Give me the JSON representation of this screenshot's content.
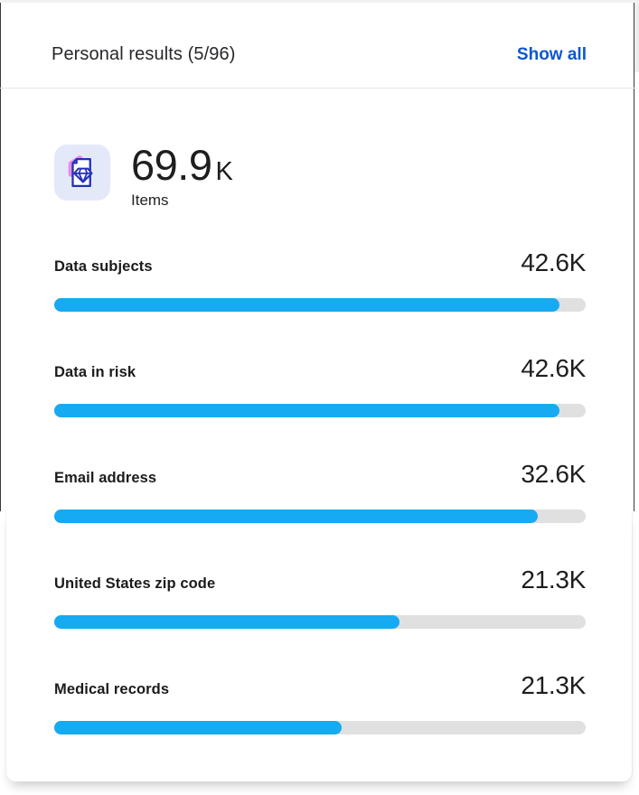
{
  "panel": {
    "title": "Personal results (5/96)",
    "show_all_label": "Show all"
  },
  "summary": {
    "value": "69.9",
    "unit": "K",
    "label": "Items",
    "icon": "document-gem-icon"
  },
  "chart_data": {
    "type": "bar",
    "orientation": "horizontal",
    "title": "Personal results (5/96)",
    "total": {
      "value": "69.9K",
      "label": "Items"
    },
    "rows": [
      {
        "label": "Data subjects",
        "value": "42.6K",
        "value_numeric": 42600,
        "fill_percent": 95
      },
      {
        "label": "Data in risk",
        "value": "42.6K",
        "value_numeric": 42600,
        "fill_percent": 95
      },
      {
        "label": "Email address",
        "value": "32.6K",
        "value_numeric": 32600,
        "fill_percent": 91
      },
      {
        "label": "United States zip code",
        "value": "21.3K",
        "value_numeric": 21300,
        "fill_percent": 65
      },
      {
        "label": "Medical records",
        "value": "21.3K",
        "value_numeric": 21300,
        "fill_percent": 54
      }
    ],
    "bar_color": "#16aaf2",
    "track_color": "#e0e0e0",
    "legend": "none",
    "grid": "off"
  },
  "colors": {
    "accent_blue": "#0b57d0",
    "bar_fill": "#16aaf2",
    "bar_track": "#e0e0e0",
    "tile_bg": "#e4e9fa",
    "icon_stroke": "#2430b8",
    "icon_highlight": "#e879e2",
    "text_primary": "#1f1f1f"
  }
}
